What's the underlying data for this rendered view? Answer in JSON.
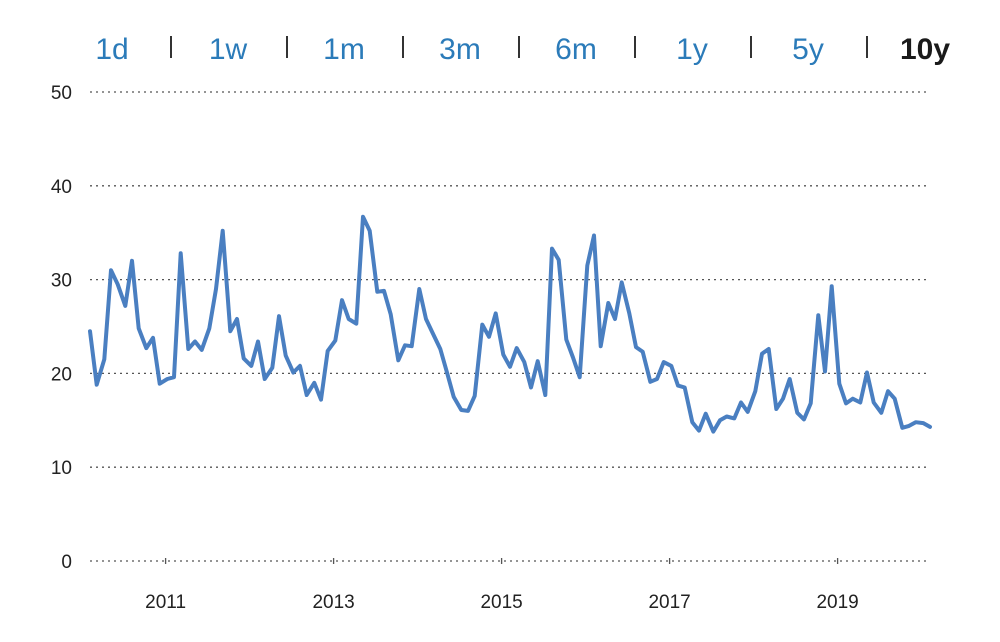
{
  "range_selector": {
    "items": [
      "1d",
      "1w",
      "1m",
      "3m",
      "6m",
      "1y",
      "5y",
      "10y"
    ],
    "active": "10y",
    "link_color": "#2b7bb9",
    "active_color": "#1a1a1a"
  },
  "chart_data": {
    "type": "line",
    "title": "",
    "xlabel": "",
    "ylabel": "",
    "ylim": [
      0,
      50
    ],
    "xlim": [
      2010.1,
      2020.1
    ],
    "y_ticks": [
      0,
      10,
      20,
      30,
      40,
      50
    ],
    "x_ticks": [
      2011,
      2013,
      2015,
      2017,
      2019
    ],
    "grid": "horizontal-dotted",
    "line_color": "#4a7fc1",
    "series": [
      {
        "x": [
          2010.1,
          2010.18,
          2010.27,
          2010.35,
          2010.43,
          2010.52,
          2010.6,
          2010.68,
          2010.77,
          2010.85,
          2010.93,
          2011.02,
          2011.1,
          2011.18,
          2011.27,
          2011.35,
          2011.43,
          2011.52,
          2011.6,
          2011.68,
          2011.77,
          2011.85,
          2011.93,
          2012.02,
          2012.1,
          2012.18,
          2012.27,
          2012.35,
          2012.43,
          2012.52,
          2012.6,
          2012.68,
          2012.77,
          2012.85,
          2012.93,
          2013.02,
          2013.1,
          2013.18,
          2013.27,
          2013.35,
          2013.43,
          2013.52,
          2013.6,
          2013.68,
          2013.77,
          2013.85,
          2013.93,
          2014.02,
          2014.1,
          2014.18,
          2014.27,
          2014.35,
          2014.43,
          2014.52,
          2014.6,
          2014.68,
          2014.77,
          2014.85,
          2014.93,
          2015.02,
          2015.1,
          2015.18,
          2015.27,
          2015.35,
          2015.43,
          2015.52,
          2015.6,
          2015.68,
          2015.77,
          2015.85,
          2015.93,
          2016.02,
          2016.1,
          2016.18,
          2016.27,
          2016.35,
          2016.43,
          2016.52,
          2016.6,
          2016.68,
          2016.77,
          2016.85,
          2016.93,
          2017.02,
          2017.1,
          2017.18,
          2017.27,
          2017.35,
          2017.43,
          2017.52,
          2017.6,
          2017.68,
          2017.77,
          2017.85,
          2017.93,
          2018.02,
          2018.1,
          2018.18,
          2018.27,
          2018.35,
          2018.43,
          2018.52,
          2018.6,
          2018.68,
          2018.77,
          2018.85,
          2018.93,
          2019.02,
          2019.1,
          2019.18,
          2019.27,
          2019.35,
          2019.43,
          2019.52,
          2019.6,
          2019.68,
          2019.77,
          2019.85,
          2019.93,
          2020.02,
          2020.1
        ],
        "values": [
          24.5,
          18.8,
          21.5,
          31.0,
          29.5,
          27.2,
          32.0,
          24.8,
          22.7,
          23.8,
          18.9,
          19.4,
          19.6,
          32.8,
          22.6,
          23.4,
          22.5,
          24.8,
          29.0,
          35.2,
          24.5,
          25.8,
          21.6,
          20.8,
          23.4,
          19.4,
          20.6,
          26.1,
          21.9,
          20.1,
          20.8,
          17.7,
          19.0,
          17.2,
          22.4,
          23.5,
          27.8,
          25.8,
          25.3,
          36.7,
          35.2,
          28.7,
          28.8,
          26.3,
          21.4,
          23.0,
          22.9,
          29.0,
          25.8,
          24.3,
          22.6,
          20.1,
          17.5,
          16.1,
          16.0,
          17.6,
          25.2,
          23.9,
          26.4,
          22.0,
          20.7,
          22.7,
          21.2,
          18.5,
          21.3,
          17.7,
          33.3,
          32.1,
          23.6,
          21.7,
          19.6,
          31.5,
          34.7,
          22.9,
          27.5,
          25.8,
          29.7,
          26.4,
          22.8,
          22.3,
          19.1,
          19.4,
          21.2,
          20.8,
          18.7,
          18.5,
          14.8,
          13.9,
          15.7,
          13.8,
          15.0,
          15.4,
          15.2,
          16.9,
          15.9,
          18.1,
          22.1,
          22.6,
          16.2,
          17.3,
          19.4,
          15.8,
          15.1,
          16.8,
          26.2,
          20.2,
          29.3,
          18.9,
          16.8,
          17.3,
          16.9,
          20.1,
          16.9,
          15.8,
          18.1,
          17.3,
          14.2,
          14.4,
          14.8,
          14.7,
          14.3
        ]
      }
    ]
  }
}
